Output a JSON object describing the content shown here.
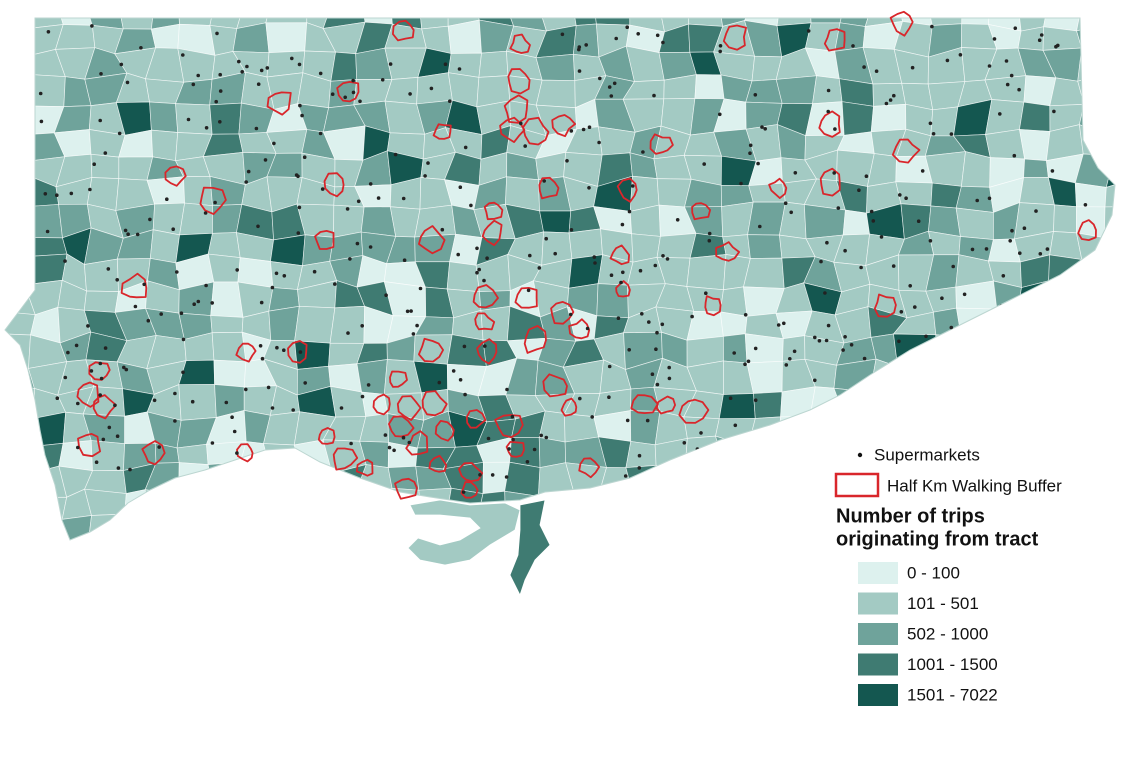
{
  "legend": {
    "points": "Supermarkets",
    "buffer": "Half Km Walking Buffer",
    "buffer_color": "#d9262b",
    "title_lines": [
      "Number of trips",
      "originating from tract"
    ],
    "classes": [
      {
        "label": "0 - 100",
        "color": "#ddf1ee"
      },
      {
        "label": "101 - 501",
        "color": "#a3cac3"
      },
      {
        "label": "502 - 1000",
        "color": "#6fa39b"
      },
      {
        "label": "1001 - 1500",
        "color": "#3f7b72"
      },
      {
        "label": "1501 - 7022",
        "color": "#145750"
      }
    ]
  }
}
